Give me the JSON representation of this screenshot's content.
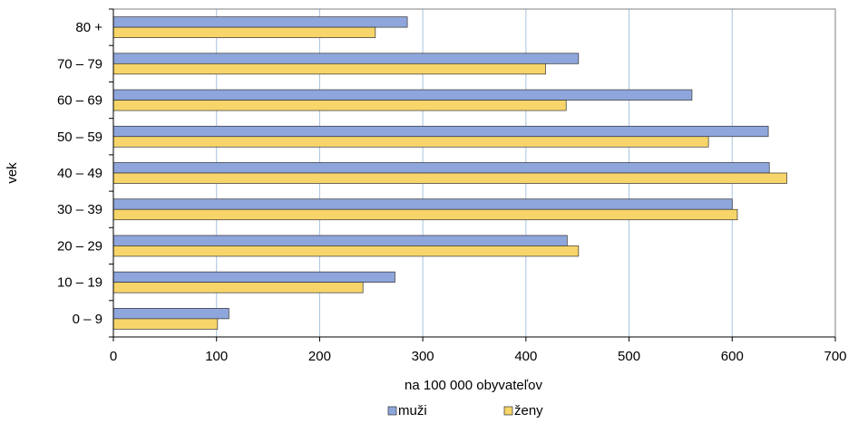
{
  "chart_data": {
    "type": "bar",
    "orientation": "horizontal",
    "categories": [
      "0 – 9",
      "10 – 19",
      "20 – 29",
      "30 – 39",
      "40 – 49",
      "50 – 59",
      "60 – 69",
      "70 – 79",
      "80 +"
    ],
    "series": [
      {
        "name": "muži",
        "color": "#8ea6dc",
        "values": [
          112,
          273,
          440,
          600,
          636,
          635,
          561,
          451,
          285
        ]
      },
      {
        "name": "ženy",
        "color": "#f7d56a",
        "values": [
          101,
          242,
          451,
          605,
          653,
          577,
          439,
          419,
          254
        ]
      }
    ],
    "xlabel": "na 100 000 obyvateľov",
    "ylabel": "vek",
    "xlim": [
      0,
      700
    ],
    "xticks": [
      0,
      100,
      200,
      300,
      400,
      500,
      600,
      700
    ],
    "grid": "vertical",
    "legend": "bottom"
  }
}
